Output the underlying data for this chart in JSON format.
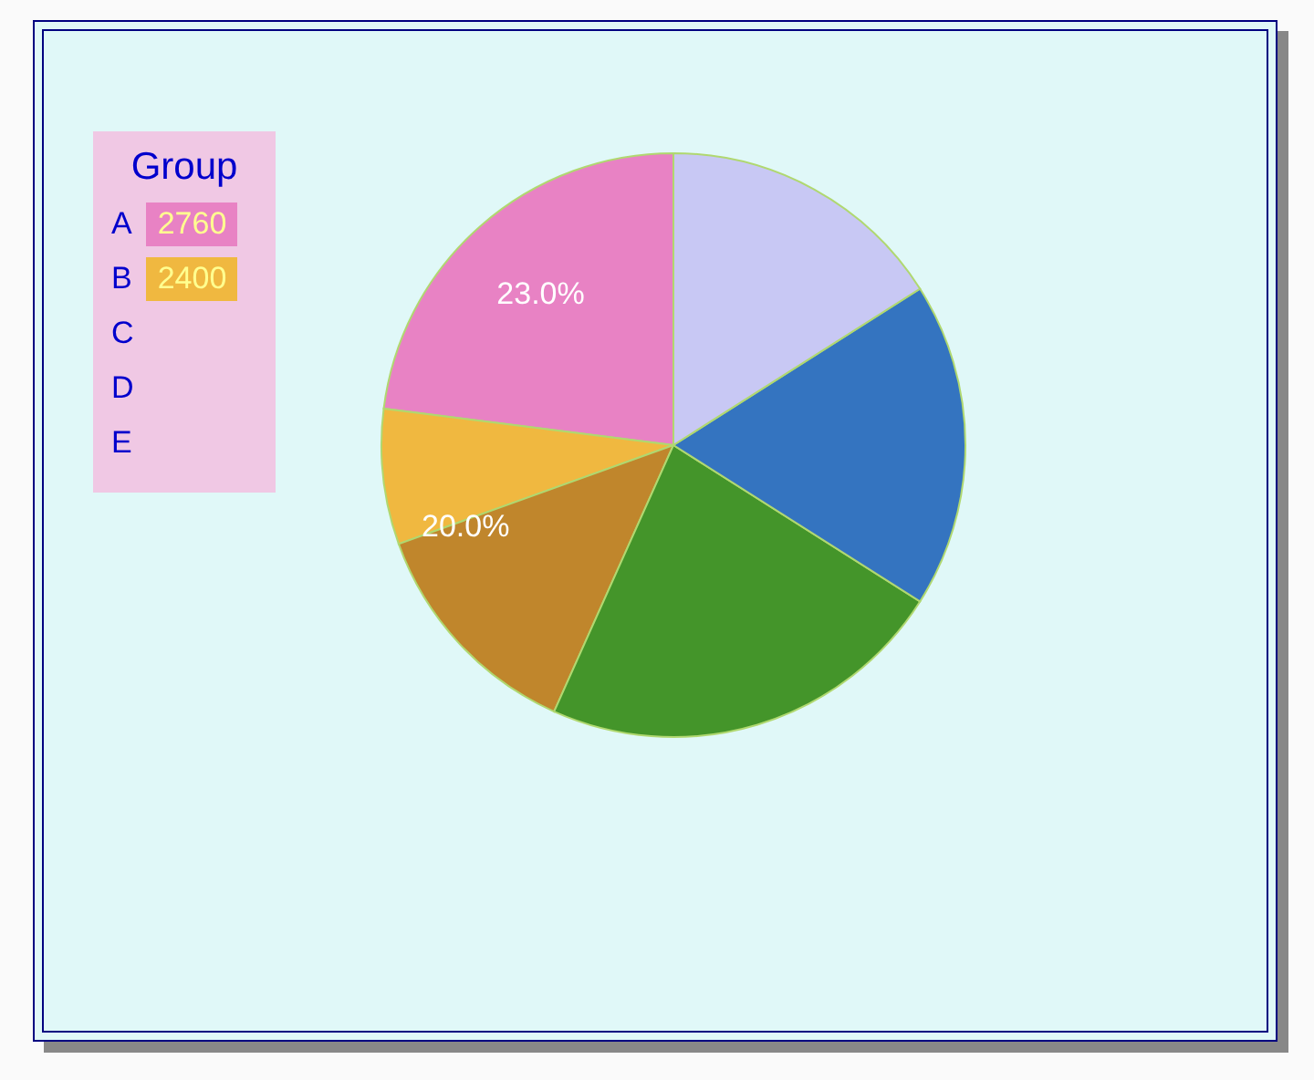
{
  "chart_data": {
    "type": "pie",
    "legend_title": "Group",
    "legend": "top left",
    "categories": [
      "A",
      "B",
      null,
      null,
      null,
      null
    ],
    "values": [
      23,
      7.5,
      12.8,
      22.7,
      18,
      16
    ],
    "colors": [
      "#e882c4",
      "#f0b840",
      "#c0862c",
      "#44952a",
      "#3474c0",
      "#c8c8f4"
    ],
    "value_labels": [
      "23.0%",
      null,
      null,
      null,
      null,
      null
    ],
    "annotations": [
      "2760",
      "2400",
      "C",
      "D",
      "E",
      "20.0%"
    ]
  }
}
